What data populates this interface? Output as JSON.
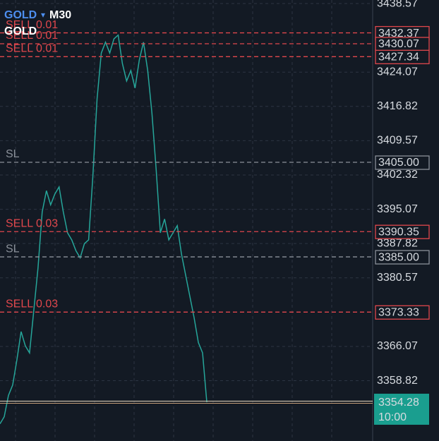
{
  "chart_data": {
    "type": "line",
    "symbol": "GOLD",
    "dropdown": "▾",
    "timeframe": "M30",
    "symbol_label": "GOLD",
    "series": [
      {
        "name": "GOLD",
        "color": "#26a69a",
        "values": [
          3349.7,
          3351.2,
          3355.7,
          3357.9,
          3363.2,
          3369.2,
          3366.2,
          3364.7,
          3373.6,
          3382.6,
          3394.5,
          3399.0,
          3396.0,
          3398.3,
          3399.8,
          3394.5,
          3390.1,
          3388.6,
          3386.3,
          3384.8,
          3387.8,
          3388.6,
          3402.0,
          3418.4,
          3428.1,
          3430.4,
          3428.1,
          3431.1,
          3431.9,
          3425.9,
          3422.2,
          3424.4,
          3420.7,
          3426.6,
          3430.4,
          3424.4,
          3415.4,
          3403.5,
          3390.1,
          3393.0,
          3388.6,
          3390.1,
          3391.6,
          3385.6,
          3381.1,
          3376.6,
          3372.1,
          3366.9,
          3364.7,
          3354.28
        ]
      }
    ],
    "ylim": [
      3346.07,
      3439.32
    ],
    "yticks": [
      3438.57,
      3424.07,
      3416.82,
      3409.57,
      3402.32,
      3395.07,
      3387.82,
      3380.57,
      3366.07,
      3358.82
    ],
    "grid": true,
    "order_lines": [
      {
        "label": "SELL 0.01",
        "price": 3432.37,
        "color": "#e0474c"
      },
      {
        "label": "SELL 0.01",
        "price": 3430.07,
        "color": "#e0474c"
      },
      {
        "label": "SELL 0.01",
        "price": 3427.34,
        "color": "#e0474c"
      },
      {
        "label": "SL",
        "price": 3405,
        "price_label": "3405.00",
        "color": "#8a9099"
      },
      {
        "label": "SELL 0.03",
        "price": 3390.35,
        "color": "#e0474c"
      },
      {
        "label": "SL",
        "price": 3385,
        "price_label": "3385.00",
        "color": "#8a9099"
      },
      {
        "label": "SELL 0.03",
        "price": 3373.33,
        "color": "#e0474c"
      }
    ],
    "current": {
      "price": 3354.28,
      "time": "10:00",
      "color": "#1a9e8f"
    }
  }
}
